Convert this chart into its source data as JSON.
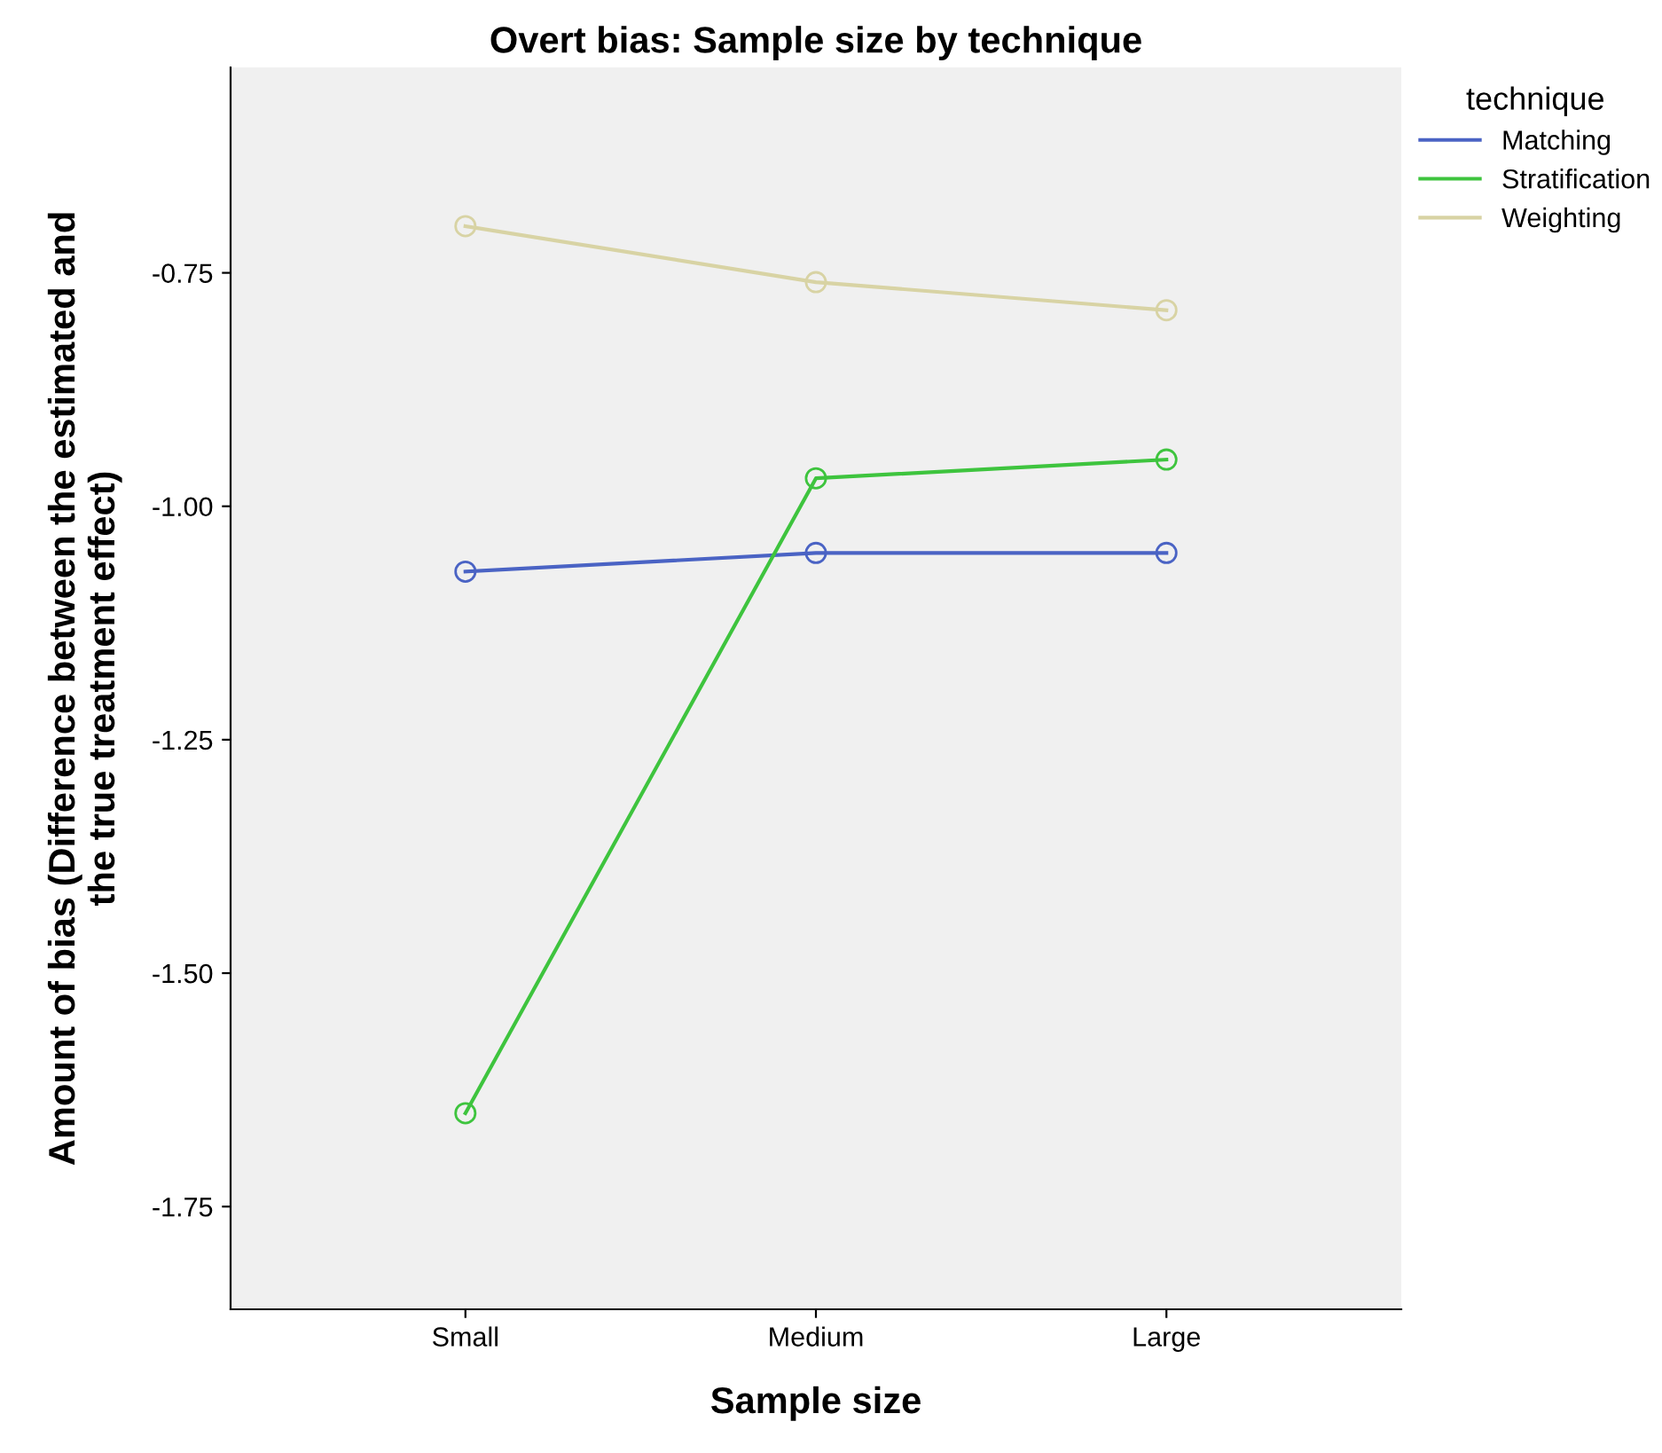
{
  "chart_data": {
    "type": "line",
    "title": "Overt bias: Sample size by technique",
    "xlabel": "Sample size",
    "ylabel": "Amount of bias (Difference between the estimated and\nthe true treatment effect)",
    "legend_title": "technique",
    "categories": [
      "Small",
      "Medium",
      "Large"
    ],
    "series": [
      {
        "name": "Matching",
        "color": "#4a63c4",
        "values": [
          -1.07,
          -1.05,
          -1.05
        ]
      },
      {
        "name": "Stratification",
        "color": "#3ec43e",
        "values": [
          -1.65,
          -0.97,
          -0.95
        ]
      },
      {
        "name": "Weighting",
        "color": "#d8d3a4",
        "values": [
          -0.7,
          -0.76,
          -0.79
        ]
      }
    ],
    "ylim": [
      -1.86,
      -0.53
    ],
    "yticks": [
      {
        "value": -1.75,
        "label": "-1.75"
      },
      {
        "value": -1.5,
        "label": "-1.50"
      },
      {
        "value": -1.25,
        "label": "-1.25"
      },
      {
        "value": -1.0,
        "label": "-1.00"
      },
      {
        "value": -0.75,
        "label": "-0.75"
      }
    ],
    "grid": false,
    "legend": "top right",
    "marker": "circle",
    "line_style": "solid"
  }
}
